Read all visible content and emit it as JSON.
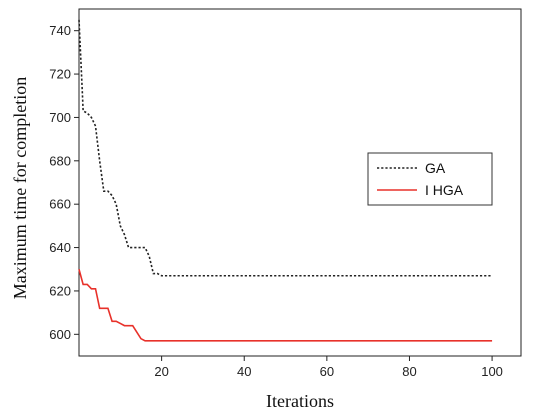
{
  "chart_data": {
    "type": "line",
    "title": "",
    "xlabel": "Iterations",
    "ylabel": "Maximum time for completion",
    "xlim": [
      0,
      107
    ],
    "ylim": [
      590,
      750
    ],
    "xticks": [
      20,
      40,
      60,
      80,
      100
    ],
    "yticks": [
      600,
      620,
      640,
      660,
      680,
      700,
      720,
      740
    ],
    "legend": "center-right",
    "grid": false,
    "series": [
      {
        "name": "GA",
        "style": "dotted",
        "color": "#222222",
        "x": [
          0,
          0.8,
          1,
          2,
          3,
          4,
          5,
          6,
          7,
          8,
          9,
          10,
          11,
          12,
          13,
          14,
          15,
          16,
          17,
          18,
          19,
          20,
          25,
          30,
          40,
          50,
          60,
          70,
          80,
          90,
          100
        ],
        "y": [
          745,
          712,
          703,
          702,
          700,
          696,
          680,
          666,
          666,
          664,
          660,
          650,
          646,
          640,
          640,
          640,
          640,
          640,
          636,
          628,
          628,
          627,
          627,
          627,
          627,
          627,
          627,
          627,
          627,
          627,
          627
        ]
      },
      {
        "name": "I HGA",
        "style": "solid",
        "color": "#e8312a",
        "x": [
          0,
          1,
          2,
          3,
          4,
          5,
          6,
          7,
          8,
          9,
          10,
          11,
          12,
          13,
          14,
          15,
          16,
          17,
          18,
          20,
          30,
          40,
          50,
          60,
          70,
          80,
          90,
          100
        ],
        "y": [
          630,
          623,
          623,
          621,
          621,
          612,
          612,
          612,
          606,
          606,
          605,
          604,
          604,
          604,
          601,
          598,
          597,
          597,
          597,
          597,
          597,
          597,
          597,
          597,
          597,
          597,
          597,
          597
        ]
      }
    ]
  }
}
